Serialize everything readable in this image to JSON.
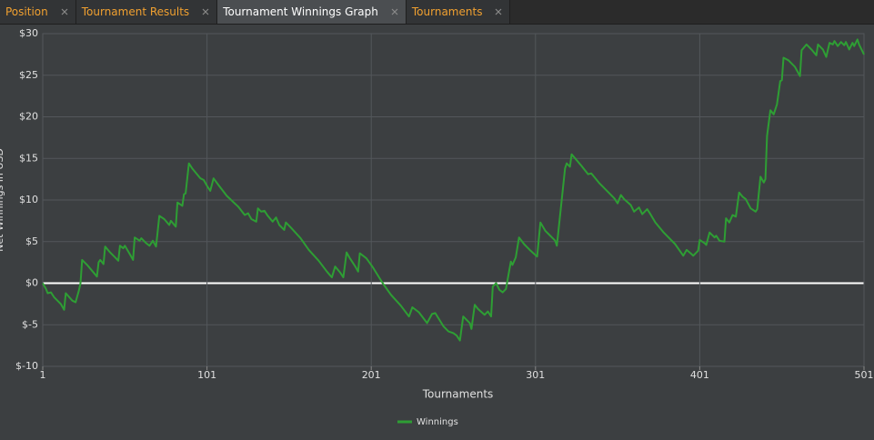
{
  "tabs": [
    {
      "label": "Position"
    },
    {
      "label": "Tournament Results"
    },
    {
      "label": "Tournament Winnings Graph"
    },
    {
      "label": "Tournaments"
    }
  ],
  "active_tab": 2,
  "chart_data": {
    "type": "line",
    "xlabel": "Tournaments",
    "ylabel": "Net Winnings in USD",
    "xlim": [
      1,
      501
    ],
    "ylim": [
      -10,
      30
    ],
    "xticks": [
      1,
      101,
      201,
      301,
      401,
      501
    ],
    "yticks": [
      {
        "value": -10,
        "label": "$-10"
      },
      {
        "value": -5,
        "label": "$-5"
      },
      {
        "value": 0,
        "label": "$0"
      },
      {
        "value": 5,
        "label": "$5"
      },
      {
        "value": 10,
        "label": "$10"
      },
      {
        "value": 15,
        "label": "$15"
      },
      {
        "value": 20,
        "label": "$20"
      },
      {
        "value": 25,
        "label": "$25"
      },
      {
        "value": 30,
        "label": "$30"
      }
    ],
    "grid": true,
    "legend": "bottom",
    "x": [
      1,
      3,
      4,
      6,
      8,
      12,
      14,
      15,
      19,
      21,
      23,
      24,
      25,
      28,
      31,
      34,
      35,
      36,
      38,
      39,
      42,
      45,
      47,
      48,
      50,
      51,
      54,
      56,
      57,
      60,
      61,
      64,
      66,
      68,
      70,
      72,
      75,
      78,
      79,
      82,
      83,
      86,
      87,
      88,
      90,
      92,
      97,
      99,
      101,
      103,
      105,
      108,
      113,
      120,
      124,
      126,
      128,
      131,
      132,
      134,
      136,
      138,
      141,
      143,
      145,
      148,
      149,
      152,
      158,
      163,
      169,
      174,
      177,
      179,
      182,
      184,
      186,
      188,
      191,
      193,
      194,
      198,
      202,
      208,
      213,
      219,
      224,
      226,
      230,
      235,
      238,
      240,
      245,
      248,
      251,
      253,
      255,
      257,
      261,
      262,
      264,
      266,
      270,
      272,
      274,
      275,
      277,
      279,
      281,
      283,
      286,
      287,
      289,
      291,
      294,
      298,
      302,
      304,
      307,
      313,
      314,
      319,
      320,
      322,
      323,
      326,
      329,
      333,
      335,
      340,
      346,
      349,
      351,
      353,
      355,
      359,
      361,
      364,
      366,
      369,
      371,
      374,
      379,
      386,
      391,
      393,
      396,
      397,
      400,
      401,
      404,
      405,
      407,
      410,
      411,
      413,
      416,
      417,
      419,
      421,
      423,
      425,
      427,
      429,
      432,
      435,
      436,
      438,
      440,
      441,
      442,
      444,
      446,
      448,
      450,
      451,
      452,
      455,
      459,
      462,
      463,
      466,
      469,
      472,
      473,
      476,
      478,
      480,
      482,
      483,
      485,
      487,
      489,
      490,
      492,
      494,
      495,
      497,
      498,
      501
    ],
    "series": [
      {
        "name": "Winnings",
        "color": "#2e9e34",
        "values": [
          0,
          -0.7,
          -1.2,
          -1.1,
          -1.7,
          -2.5,
          -3.2,
          -1.2,
          -2.1,
          -2.3,
          -0.9,
          0,
          2.8,
          2.2,
          1.5,
          0.8,
          2.5,
          2.8,
          2.3,
          4.4,
          3.7,
          3.1,
          2.7,
          4.5,
          4.2,
          4.5,
          3.5,
          2.8,
          5.5,
          5.1,
          5.4,
          4.8,
          4.5,
          5.1,
          4.4,
          8.1,
          7.7,
          7.0,
          7.5,
          6.8,
          9.7,
          9.3,
          10.7,
          10.8,
          14.4,
          13.8,
          12.6,
          12.4,
          11.7,
          11.1,
          12.6,
          11.8,
          10.5,
          9.2,
          8.2,
          8.4,
          7.7,
          7.4,
          9.0,
          8.6,
          8.7,
          8.1,
          7.4,
          7.9,
          7.0,
          6.4,
          7.3,
          6.7,
          5.4,
          4.0,
          2.7,
          1.4,
          0.7,
          2.0,
          1.3,
          0.7,
          3.7,
          3.0,
          2.1,
          1.4,
          3.6,
          3.0,
          1.9,
          0,
          -1.4,
          -2.7,
          -4.0,
          -2.9,
          -3.5,
          -4.8,
          -3.7,
          -3.6,
          -5.2,
          -5.8,
          -6.0,
          -6.3,
          -6.9,
          -4.0,
          -4.8,
          -5.5,
          -2.6,
          -3.1,
          -3.8,
          -3.4,
          -4.0,
          -0.4,
          0,
          -0.8,
          -1.1,
          -0.7,
          2.6,
          2.2,
          3.1,
          5.5,
          4.7,
          3.9,
          3.2,
          7.3,
          6.3,
          5.1,
          4.5,
          13.8,
          14.4,
          14.0,
          15.5,
          14.8,
          14.1,
          13.1,
          13.2,
          12.0,
          10.8,
          10.2,
          9.6,
          10.6,
          10.1,
          9.4,
          8.6,
          9.1,
          8.3,
          8.9,
          8.3,
          7.3,
          6.1,
          4.7,
          3.3,
          4.0,
          3.5,
          3.3,
          3.9,
          5.2,
          4.8,
          4.6,
          6.1,
          5.5,
          5.7,
          5.1,
          5.0,
          7.8,
          7.3,
          8.2,
          8.0,
          10.9,
          10.4,
          10.1,
          9.0,
          8.6,
          8.9,
          12.8,
          12.1,
          12.5,
          17.7,
          20.8,
          20.3,
          21.5,
          24.3,
          24.4,
          27.1,
          26.8,
          26.0,
          24.9,
          28.0,
          28.7,
          28.1,
          27.4,
          28.7,
          28.1,
          27.2,
          28.9,
          28.7,
          29.1,
          28.5,
          29.0,
          28.6,
          29.0,
          28.1,
          28.9,
          28.5,
          29.3,
          28.7,
          27.5
        ]
      }
    ]
  }
}
